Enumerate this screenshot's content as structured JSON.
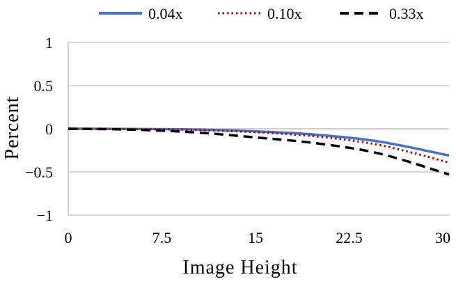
{
  "chart_data": {
    "type": "line",
    "xlabel": "Image Height",
    "ylabel": "Percent",
    "xlim": [
      0,
      30.5
    ],
    "ylim": [
      -1,
      1
    ],
    "xticks": [
      0,
      7.5,
      15,
      22.5,
      30
    ],
    "xtick_labels": [
      "0",
      "7.5",
      "15",
      "22.5",
      "30"
    ],
    "yticks": [
      1,
      0.5,
      0,
      -0.5,
      -1
    ],
    "ytick_labels": [
      "1",
      "0.5",
      "0",
      "−0.5",
      "−1"
    ],
    "grid": "horizontal",
    "legend_position": "top",
    "x": [
      0,
      5,
      10,
      15,
      20,
      25,
      30.5
    ],
    "series": [
      {
        "name": "0.04x",
        "color": "#4472C4",
        "style": "solid",
        "values": [
          0,
          -0.002,
          -0.008,
          -0.03,
          -0.07,
          -0.15,
          -0.31
        ]
      },
      {
        "name": "0.10x",
        "color": "#C00000",
        "style": "dotted",
        "values": [
          0,
          -0.003,
          -0.013,
          -0.04,
          -0.09,
          -0.19,
          -0.39
        ]
      },
      {
        "name": "0.33x",
        "color": "#000000",
        "style": "dashed",
        "values": [
          0,
          -0.01,
          -0.04,
          -0.1,
          -0.17,
          -0.29,
          -0.53
        ]
      }
    ]
  }
}
